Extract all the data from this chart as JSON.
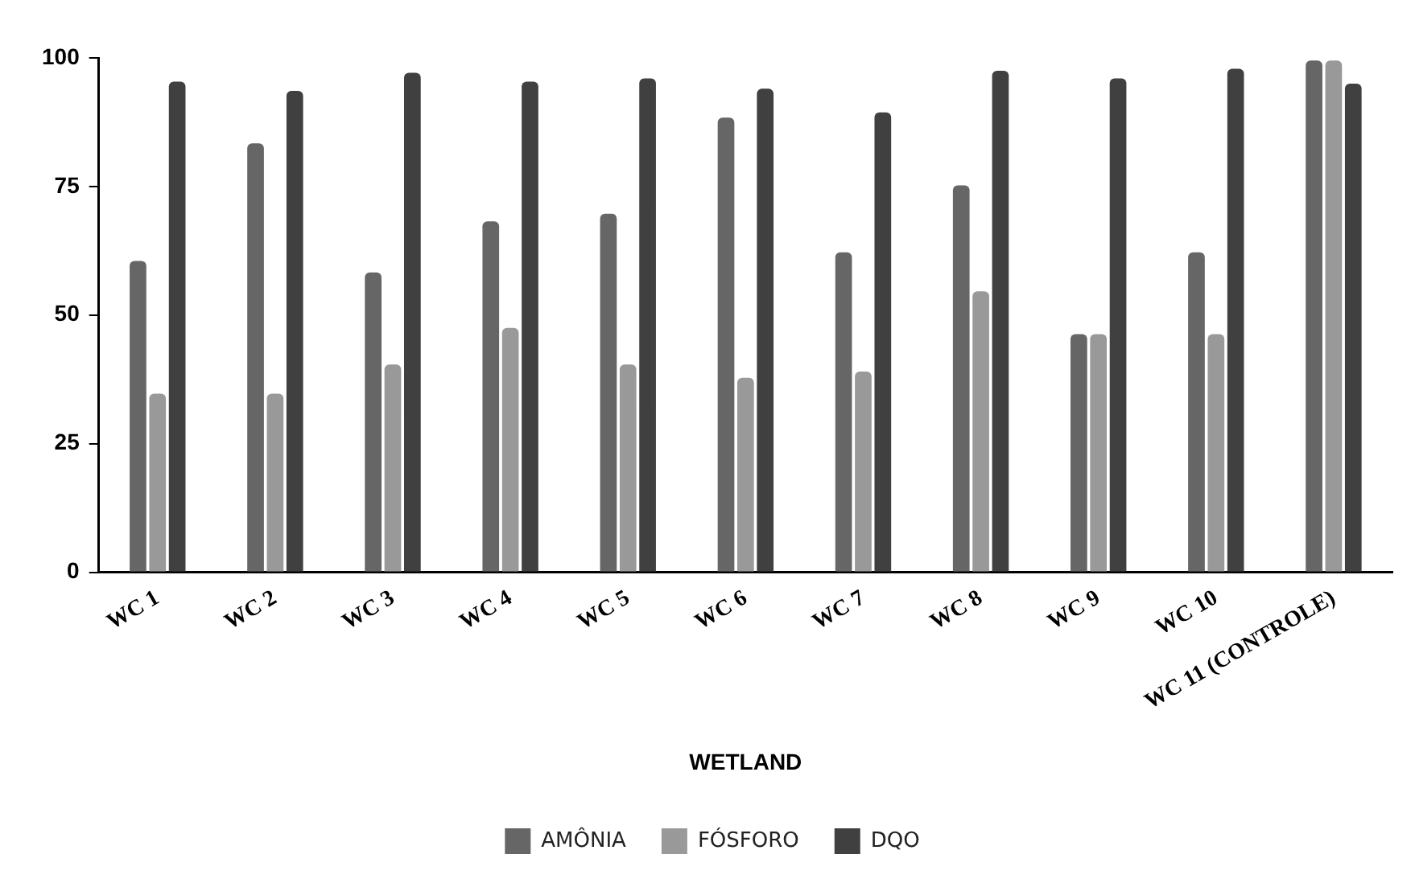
{
  "chart_data": {
    "type": "bar",
    "xlabel": "WETLAND",
    "categories": [
      "WC 1",
      "WC 2",
      "WC 3",
      "WC 4",
      "WC 5",
      "WC 6",
      "WC 7",
      "WC 8",
      "WC 9",
      "WC 10",
      "WC 11 (CONTROLE)"
    ],
    "series": [
      {
        "name": "AMÔNIA",
        "color": "#666666",
        "values": [
          60.5,
          83.4,
          58.3,
          68.2,
          69.7,
          88.4,
          62.2,
          75.2,
          46.3,
          62.2,
          99.5
        ]
      },
      {
        "name": "FÓSFORO",
        "color": "#999999",
        "values": [
          34.7,
          34.7,
          40.4,
          47.5,
          40.4,
          37.8,
          39.0,
          54.6,
          46.3,
          46.3,
          99.5
        ]
      },
      {
        "name": "DQO",
        "color": "#404040",
        "values": [
          95.4,
          93.6,
          97.1,
          95.4,
          96.0,
          94.0,
          89.4,
          97.5,
          96.0,
          97.9,
          95.0
        ]
      }
    ],
    "ylim": [
      0,
      100
    ],
    "yticks": [
      0,
      25,
      50,
      75,
      100
    ],
    "grid": false,
    "legend": "bottom"
  }
}
